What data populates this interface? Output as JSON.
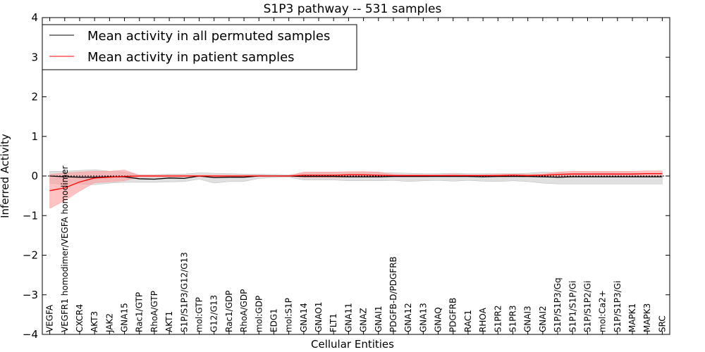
{
  "chart_data": {
    "type": "line",
    "title": "S1P3 pathway -- 531 samples",
    "xlabel": "Cellular Entities",
    "ylabel": "Inferred Activity",
    "ylim": [
      -4,
      4
    ],
    "yticks": [
      -4,
      -3,
      -2,
      -1,
      0,
      1,
      2,
      3,
      4
    ],
    "ytick_labels": [
      "−4",
      "−3",
      "−2",
      "−1",
      "0",
      "1",
      "2",
      "3",
      "4"
    ],
    "legend_position": "top-left",
    "categories": [
      "VEGFA",
      "VEGFR1 homodimer/VEGFA homodimer",
      "CXCR4",
      "AKT3",
      "JAK2",
      "GNA15",
      "Rac1/GTP",
      "RhoA/GTP",
      "AKT1",
      "S1P/S1P3/G12/G13",
      "mol:GTP",
      "G12/G13",
      "Rac1/GDP",
      "RhoA/GDP",
      "mol:GDP",
      "EDG1",
      "mol:S1P",
      "GNA14",
      "GNAO1",
      "FLT1",
      "GNA11",
      "GNAZ",
      "GNAI1",
      "PDGFB-D/PDGFRB",
      "GNA12",
      "GNA13",
      "GNAQ",
      "PDGFRB",
      "RAC1",
      "RHOA",
      "S1PR2",
      "S1PR3",
      "GNAI3",
      "GNAI2",
      "S1P/S1P3/Gq",
      "S1P1/S1P/Gi",
      "S1P/S1P2/Gi",
      "mol:Ca2+",
      "S1P/S1P3/Gi",
      "MAPK1",
      "MAPK3",
      "SRC"
    ],
    "series": [
      {
        "name": "Mean activity in all permuted samples",
        "color": "#000000",
        "band_color": "#bbbbbb",
        "values": [
          0.0,
          -0.02,
          -0.03,
          -0.03,
          -0.02,
          -0.02,
          -0.07,
          -0.08,
          -0.05,
          -0.06,
          0.0,
          -0.04,
          -0.03,
          -0.03,
          0.0,
          0.0,
          0.0,
          -0.01,
          -0.01,
          -0.01,
          -0.02,
          -0.02,
          -0.02,
          -0.01,
          -0.01,
          -0.01,
          -0.01,
          -0.01,
          -0.01,
          -0.02,
          -0.01,
          -0.01,
          -0.01,
          -0.02,
          -0.03,
          -0.02,
          -0.02,
          -0.02,
          -0.02,
          -0.02,
          -0.02,
          -0.02
        ],
        "lower": [
          -0.18,
          -0.22,
          -0.2,
          -0.22,
          -0.18,
          -0.16,
          -0.16,
          -0.16,
          -0.15,
          -0.14,
          -0.08,
          -0.18,
          -0.14,
          -0.14,
          -0.06,
          -0.04,
          -0.03,
          -0.1,
          -0.1,
          -0.1,
          -0.12,
          -0.12,
          -0.12,
          -0.11,
          -0.14,
          -0.12,
          -0.11,
          -0.13,
          -0.11,
          -0.13,
          -0.14,
          -0.12,
          -0.14,
          -0.18,
          -0.2,
          -0.2,
          -0.2,
          -0.2,
          -0.2,
          -0.2,
          -0.2,
          -0.2
        ],
        "upper": [
          0.12,
          0.12,
          0.14,
          0.16,
          0.12,
          0.1,
          0.03,
          0.03,
          0.05,
          0.05,
          0.08,
          0.07,
          0.06,
          0.05,
          0.05,
          0.04,
          0.03,
          0.07,
          0.08,
          0.08,
          0.08,
          0.09,
          0.08,
          0.08,
          0.07,
          0.06,
          0.06,
          0.07,
          0.06,
          0.06,
          0.06,
          0.06,
          0.07,
          0.1,
          0.08,
          0.07,
          0.07,
          0.08,
          0.07,
          0.07,
          0.07,
          0.07
        ]
      },
      {
        "name": "Mean activity in patient samples",
        "color": "#ff0000",
        "band_color": "#ff9999",
        "values": [
          -0.37,
          -0.3,
          -0.15,
          -0.05,
          -0.03,
          -0.01,
          0.0,
          0.0,
          0.0,
          0.0,
          0.0,
          0.0,
          0.0,
          0.0,
          0.0,
          0.0,
          0.0,
          0.02,
          0.02,
          0.02,
          0.03,
          0.03,
          0.02,
          0.01,
          0.01,
          0.01,
          0.01,
          0.01,
          0.01,
          0.01,
          0.01,
          0.02,
          0.01,
          0.02,
          0.04,
          0.05,
          0.05,
          0.05,
          0.05,
          0.05,
          0.06,
          0.06
        ],
        "lower": [
          -0.82,
          -0.62,
          -0.38,
          -0.17,
          -0.15,
          -0.12,
          -0.02,
          -0.02,
          -0.02,
          -0.02,
          -0.02,
          -0.02,
          -0.02,
          -0.02,
          -0.01,
          -0.01,
          -0.01,
          -0.04,
          -0.04,
          -0.04,
          -0.03,
          -0.03,
          -0.03,
          -0.02,
          -0.02,
          -0.02,
          -0.01,
          -0.01,
          -0.01,
          -0.01,
          -0.02,
          -0.02,
          -0.02,
          -0.02,
          -0.02,
          -0.02,
          -0.02,
          -0.02,
          -0.02,
          -0.02,
          -0.02,
          -0.02
        ],
        "upper": [
          0.04,
          0.08,
          0.1,
          0.12,
          0.12,
          0.15,
          0.02,
          0.02,
          0.02,
          0.02,
          0.02,
          0.02,
          0.02,
          0.02,
          0.02,
          0.01,
          0.01,
          0.1,
          0.1,
          0.1,
          0.11,
          0.11,
          0.1,
          0.04,
          0.03,
          0.03,
          0.03,
          0.04,
          0.03,
          0.03,
          0.04,
          0.05,
          0.04,
          0.05,
          0.1,
          0.12,
          0.12,
          0.12,
          0.12,
          0.12,
          0.13,
          0.13
        ]
      }
    ]
  }
}
